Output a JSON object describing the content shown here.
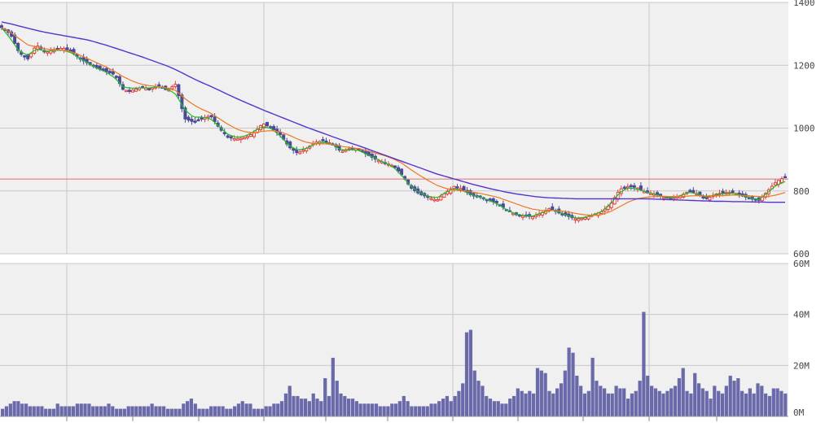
{
  "colors": {
    "panel_bg": "#f0f0f0",
    "grid": "#c8c8c8",
    "up": "#e04040",
    "down": "#4a4a9a",
    "ma_short": "#22bb22",
    "ma_mid": "#ee7722",
    "ma_long": "#5533cc",
    "ref_line": "#e07070",
    "volume": "#6a6aaa"
  },
  "chart_data": [
    {
      "type": "line",
      "subtype": "candlestick",
      "title": "",
      "xlabel": "",
      "ylabel": "",
      "ylim": [
        600,
        1400
      ],
      "y_ticks": [
        "600",
        "800",
        "1000",
        "1200",
        "1400"
      ],
      "y_tick_values": [
        600,
        800,
        1000,
        1200,
        1400
      ],
      "grid": true,
      "n_candles": 240,
      "reference_line": 838,
      "price_anchors": [
        1320,
        1300,
        1240,
        1220,
        1265,
        1240,
        1250,
        1255,
        1245,
        1220,
        1205,
        1190,
        1180,
        1170,
        1120,
        1120,
        1130,
        1125,
        1135,
        1120,
        1140,
        1030,
        1020,
        1030,
        1040,
        1000,
        970,
        965,
        970,
        985,
        1015,
        1000,
        980,
        940,
        920,
        935,
        955,
        960,
        950,
        925,
        935,
        935,
        915,
        900,
        890,
        880,
        850,
        810,
        790,
        780,
        770,
        795,
        815,
        805,
        785,
        780,
        770,
        760,
        740,
        725,
        720,
        718,
        730,
        745,
        730,
        720,
        710,
        715,
        725,
        735,
        760,
        805,
        815,
        810,
        795,
        790,
        780,
        775,
        785,
        800,
        790,
        775,
        790,
        795,
        795,
        785,
        775,
        770,
        800,
        830,
        845
      ],
      "series": [
        {
          "name": "",
          "values": [
            1320,
            1285,
            1245,
            1232,
            1252,
            1245,
            1247,
            1248,
            1240,
            1222,
            1206,
            1190,
            1178,
            1160,
            1130,
            1127,
            1128,
            1128,
            1132,
            1125,
            1108,
            1060,
            1035,
            1035,
            1030,
            1005,
            980,
            970,
            975,
            990,
            1005,
            998,
            975,
            945,
            930,
            935,
            950,
            955,
            948,
            930,
            932,
            930,
            915,
            903,
            890,
            876,
            848,
            815,
            795,
            783,
            778,
            795,
            808,
            800,
            788,
            780,
            770,
            758,
            740,
            727,
            721,
            720,
            730,
            740,
            733,
            722,
            713,
            716,
            724,
            735,
            760,
            795,
            810,
            806,
            797,
            790,
            782,
            778,
            785,
            796,
            790,
            780,
            788,
            792,
            793,
            786,
            778,
            772,
            795,
            818,
            830
          ]
        },
        {
          "name": "",
          "values": [
            1320,
            1305,
            1285,
            1265,
            1258,
            1252,
            1250,
            1248,
            1243,
            1232,
            1220,
            1207,
            1195,
            1180,
            1163,
            1150,
            1140,
            1135,
            1132,
            1128,
            1120,
            1095,
            1075,
            1060,
            1048,
            1030,
            1012,
            997,
            988,
            985,
            990,
            992,
            988,
            978,
            965,
            955,
            950,
            950,
            948,
            942,
            938,
            935,
            928,
            920,
            912,
            902,
            888,
            868,
            850,
            833,
            818,
            808,
            803,
            800,
            797,
            792,
            786,
            780,
            770,
            760,
            750,
            742,
            738,
            738,
            737,
            734,
            728,
            724,
            722,
            725,
            735,
            750,
            765,
            775,
            780,
            782,
            783,
            782,
            782,
            784,
            785,
            784,
            784,
            785,
            787,
            786,
            784,
            782,
            782,
            787,
            795
          ]
        },
        {
          "name": "",
          "values": [
            1338,
            1332,
            1325,
            1318,
            1311,
            1305,
            1300,
            1295,
            1290,
            1285,
            1280,
            1272,
            1264,
            1255,
            1246,
            1237,
            1228,
            1218,
            1208,
            1198,
            1186,
            1172,
            1158,
            1145,
            1133,
            1120,
            1107,
            1094,
            1082,
            1070,
            1058,
            1047,
            1036,
            1025,
            1014,
            1003,
            993,
            983,
            973,
            963,
            953,
            944,
            934,
            924,
            914,
            904,
            894,
            884,
            874,
            864,
            854,
            846,
            838,
            830,
            822,
            815,
            808,
            802,
            796,
            791,
            787,
            783,
            780,
            778,
            777,
            776,
            775,
            775,
            775,
            775,
            775,
            775,
            775,
            775,
            775,
            774,
            773,
            772,
            771,
            770,
            769,
            768,
            767,
            767,
            766,
            766,
            765,
            765,
            764,
            764,
            764
          ]
        }
      ]
    },
    {
      "type": "bar",
      "title": "",
      "xlabel": "",
      "ylabel": "",
      "ylim": [
        0,
        60
      ],
      "y_unit": "M",
      "y_ticks": [
        "0M",
        "20M",
        "40M",
        "60M"
      ],
      "y_tick_values": [
        0,
        20,
        40,
        60
      ],
      "grid": true,
      "values": [
        3,
        4,
        5,
        6,
        6,
        5,
        5,
        4,
        4,
        4,
        4,
        3,
        3,
        3,
        5,
        4,
        4,
        4,
        4,
        5,
        5,
        5,
        5,
        4,
        4,
        4,
        4,
        5,
        4,
        3,
        3,
        3,
        4,
        4,
        4,
        4,
        4,
        4,
        5,
        4,
        4,
        4,
        3,
        3,
        3,
        3,
        5,
        6,
        7,
        5,
        3,
        3,
        3,
        4,
        4,
        4,
        4,
        3,
        3,
        4,
        5,
        6,
        5,
        5,
        3,
        3,
        3,
        4,
        4,
        5,
        5,
        6,
        9,
        12,
        8,
        8,
        7,
        7,
        6,
        9,
        7,
        6,
        15,
        8,
        23,
        14,
        9,
        8,
        7,
        7,
        6,
        5,
        5,
        5,
        5,
        5,
        4,
        4,
        4,
        5,
        5,
        6,
        8,
        6,
        4,
        4,
        4,
        4,
        4,
        5,
        5,
        6,
        7,
        8,
        6,
        8,
        10,
        13,
        33,
        34,
        18,
        14,
        12,
        8,
        7,
        6,
        6,
        5,
        5,
        7,
        8,
        11,
        10,
        9,
        10,
        9,
        19,
        18,
        17,
        10,
        9,
        11,
        13,
        18,
        27,
        25,
        16,
        12,
        9,
        10,
        23,
        14,
        12,
        11,
        9,
        9,
        12,
        11,
        11,
        7,
        9,
        10,
        14,
        41,
        16,
        12,
        11,
        10,
        9,
        10,
        11,
        12,
        15,
        19,
        10,
        9,
        17,
        13,
        11,
        10,
        7,
        12,
        10,
        9,
        12,
        16,
        14,
        15,
        10,
        9,
        11,
        9,
        13,
        12,
        9,
        8,
        11,
        11,
        10,
        9
      ]
    }
  ]
}
